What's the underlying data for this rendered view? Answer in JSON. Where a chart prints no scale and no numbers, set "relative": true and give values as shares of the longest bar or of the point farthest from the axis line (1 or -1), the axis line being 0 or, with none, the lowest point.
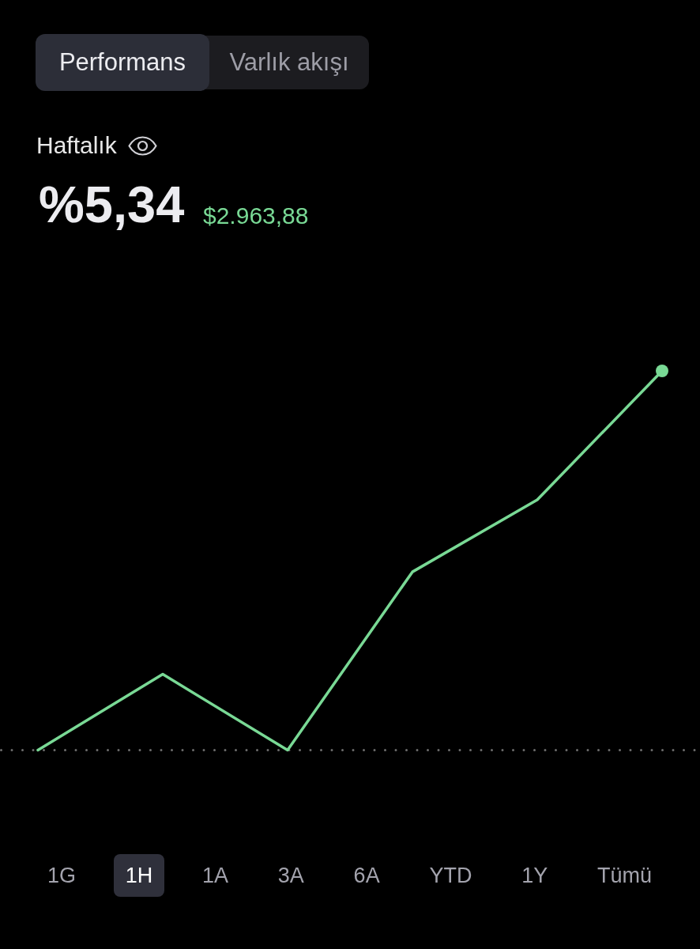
{
  "chart_data": {
    "type": "line",
    "title": "Haftalık",
    "subtitle": "%5,34",
    "annotations": [
      "$2.963,88",
      "Performans",
      "Varlık akışı",
      "1G",
      "1H",
      "1A",
      "3A",
      "6A",
      "YTD",
      "1Y",
      "Tümü"
    ],
    "categories": [
      null,
      null,
      null,
      null,
      null,
      null
    ],
    "relative": true,
    "series": [
      {
        "color": "#79d995",
        "values": [
          0,
          0.2,
          0,
          0.47,
          0.66,
          1
        ]
      },
      {
        "color": "#79d995",
        "marker": "circle",
        "values": [
          null,
          null,
          null,
          null,
          null,
          1
        ]
      }
    ]
  }
}
